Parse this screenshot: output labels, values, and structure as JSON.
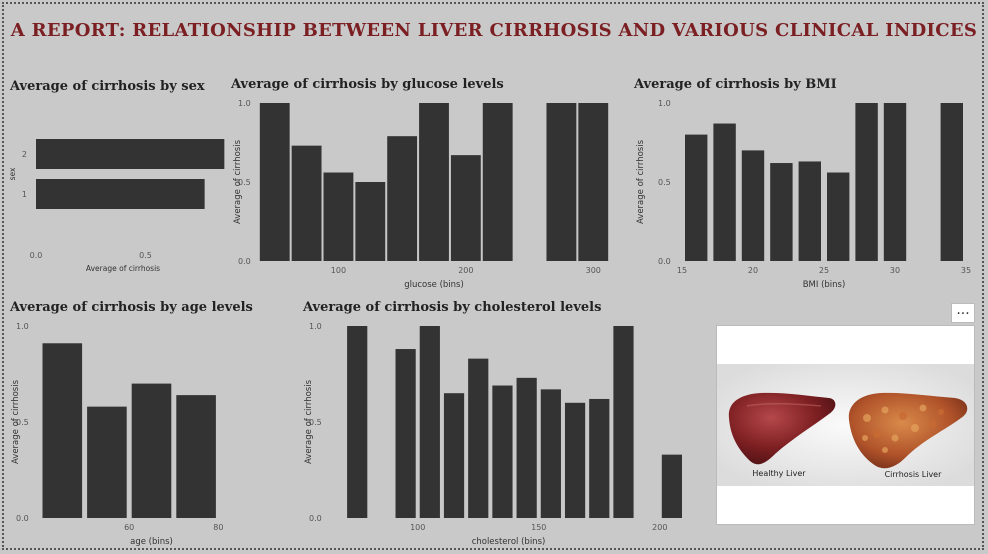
{
  "report_title": "A  REPORT: RELATIONSHIP BETWEEN LIVER CIRRHOSIS AND VARIOUS CLINICAL INDICES",
  "more_options": "...",
  "image_card": {
    "healthy_label": "Healthy Liver",
    "cirrhosis_label": "Cirrhosis Liver"
  },
  "chart_data": [
    {
      "id": "sex",
      "type": "bar",
      "orientation": "horizontal",
      "title": "Average of cirrhosis by sex",
      "xlabel": "Average of cirrhosis",
      "ylabel": "sex",
      "categories": [
        "2",
        "1"
      ],
      "values": [
        0.86,
        0.77
      ],
      "xlim": [
        0,
        1
      ],
      "xticks": [
        "0.0",
        "0.5"
      ]
    },
    {
      "id": "glucose",
      "type": "bar",
      "title": "Average of cirrhosis by glucose levels",
      "xlabel": "glucose (bins)",
      "ylabel": "Average of cirrhosis",
      "ylim": [
        0,
        1
      ],
      "yticks": [
        "0.0",
        "0.5",
        "1.0"
      ],
      "bin_width": 25,
      "xlim": [
        40,
        310
      ],
      "x": [
        50,
        75,
        100,
        125,
        150,
        175,
        200,
        225,
        275,
        300
      ],
      "values": [
        1.0,
        0.73,
        0.56,
        0.5,
        0.79,
        1.0,
        0.67,
        1.0,
        1.0,
        1.0
      ],
      "xtick_values": [
        100,
        200,
        300
      ],
      "xticks": [
        "100",
        "200",
        "300"
      ]
    },
    {
      "id": "bmi",
      "type": "bar",
      "title": "Average of cirrhosis by BMI",
      "xlabel": "BMI (bins)",
      "ylabel": "Average of cirrhosis",
      "ylim": [
        0,
        1
      ],
      "yticks": [
        "0.0",
        "0.5",
        "1.0"
      ],
      "bin_width": 2,
      "xlim": [
        15,
        35
      ],
      "x": [
        16,
        18,
        20,
        22,
        24,
        26,
        28,
        30,
        34
      ],
      "values": [
        0.8,
        0.87,
        0.7,
        0.62,
        0.63,
        0.56,
        1.0,
        1.0,
        1.0
      ],
      "xtick_values": [
        15,
        20,
        25,
        30,
        35
      ],
      "xticks": [
        "15",
        "20",
        "25",
        "30",
        "35"
      ]
    },
    {
      "id": "age",
      "type": "bar",
      "title": "Average of cirrhosis by age levels",
      "xlabel": "age (bins)",
      "ylabel": "Average of cirrhosis",
      "ylim": [
        0,
        1
      ],
      "yticks": [
        "0.0",
        "0.5",
        "1.0"
      ],
      "bin_width": 10,
      "xlim": [
        40,
        90
      ],
      "x": [
        45,
        55,
        65,
        75
      ],
      "values": [
        0.91,
        0.58,
        0.7,
        0.64
      ],
      "xtick_values": [
        60,
        80
      ],
      "xticks": [
        "60",
        "80"
      ]
    },
    {
      "id": "cholesterol",
      "type": "bar",
      "title": "Average of cirrhosis by cholesterol levels",
      "xlabel": "cholesterol (bins)",
      "ylabel": "Average of cirrhosis",
      "ylim": [
        0,
        1
      ],
      "yticks": [
        "0.0",
        "0.5",
        "1.0"
      ],
      "bin_width": 10,
      "xlim": [
        65,
        210
      ],
      "x": [
        75,
        95,
        105,
        115,
        125,
        135,
        145,
        155,
        165,
        175,
        185,
        205
      ],
      "values": [
        1.0,
        0.88,
        1.0,
        0.65,
        0.83,
        0.69,
        0.73,
        0.67,
        0.6,
        0.62,
        1.0,
        0.33
      ],
      "xtick_values": [
        100,
        150,
        200
      ],
      "xticks": [
        "100",
        "150",
        "200"
      ]
    }
  ]
}
